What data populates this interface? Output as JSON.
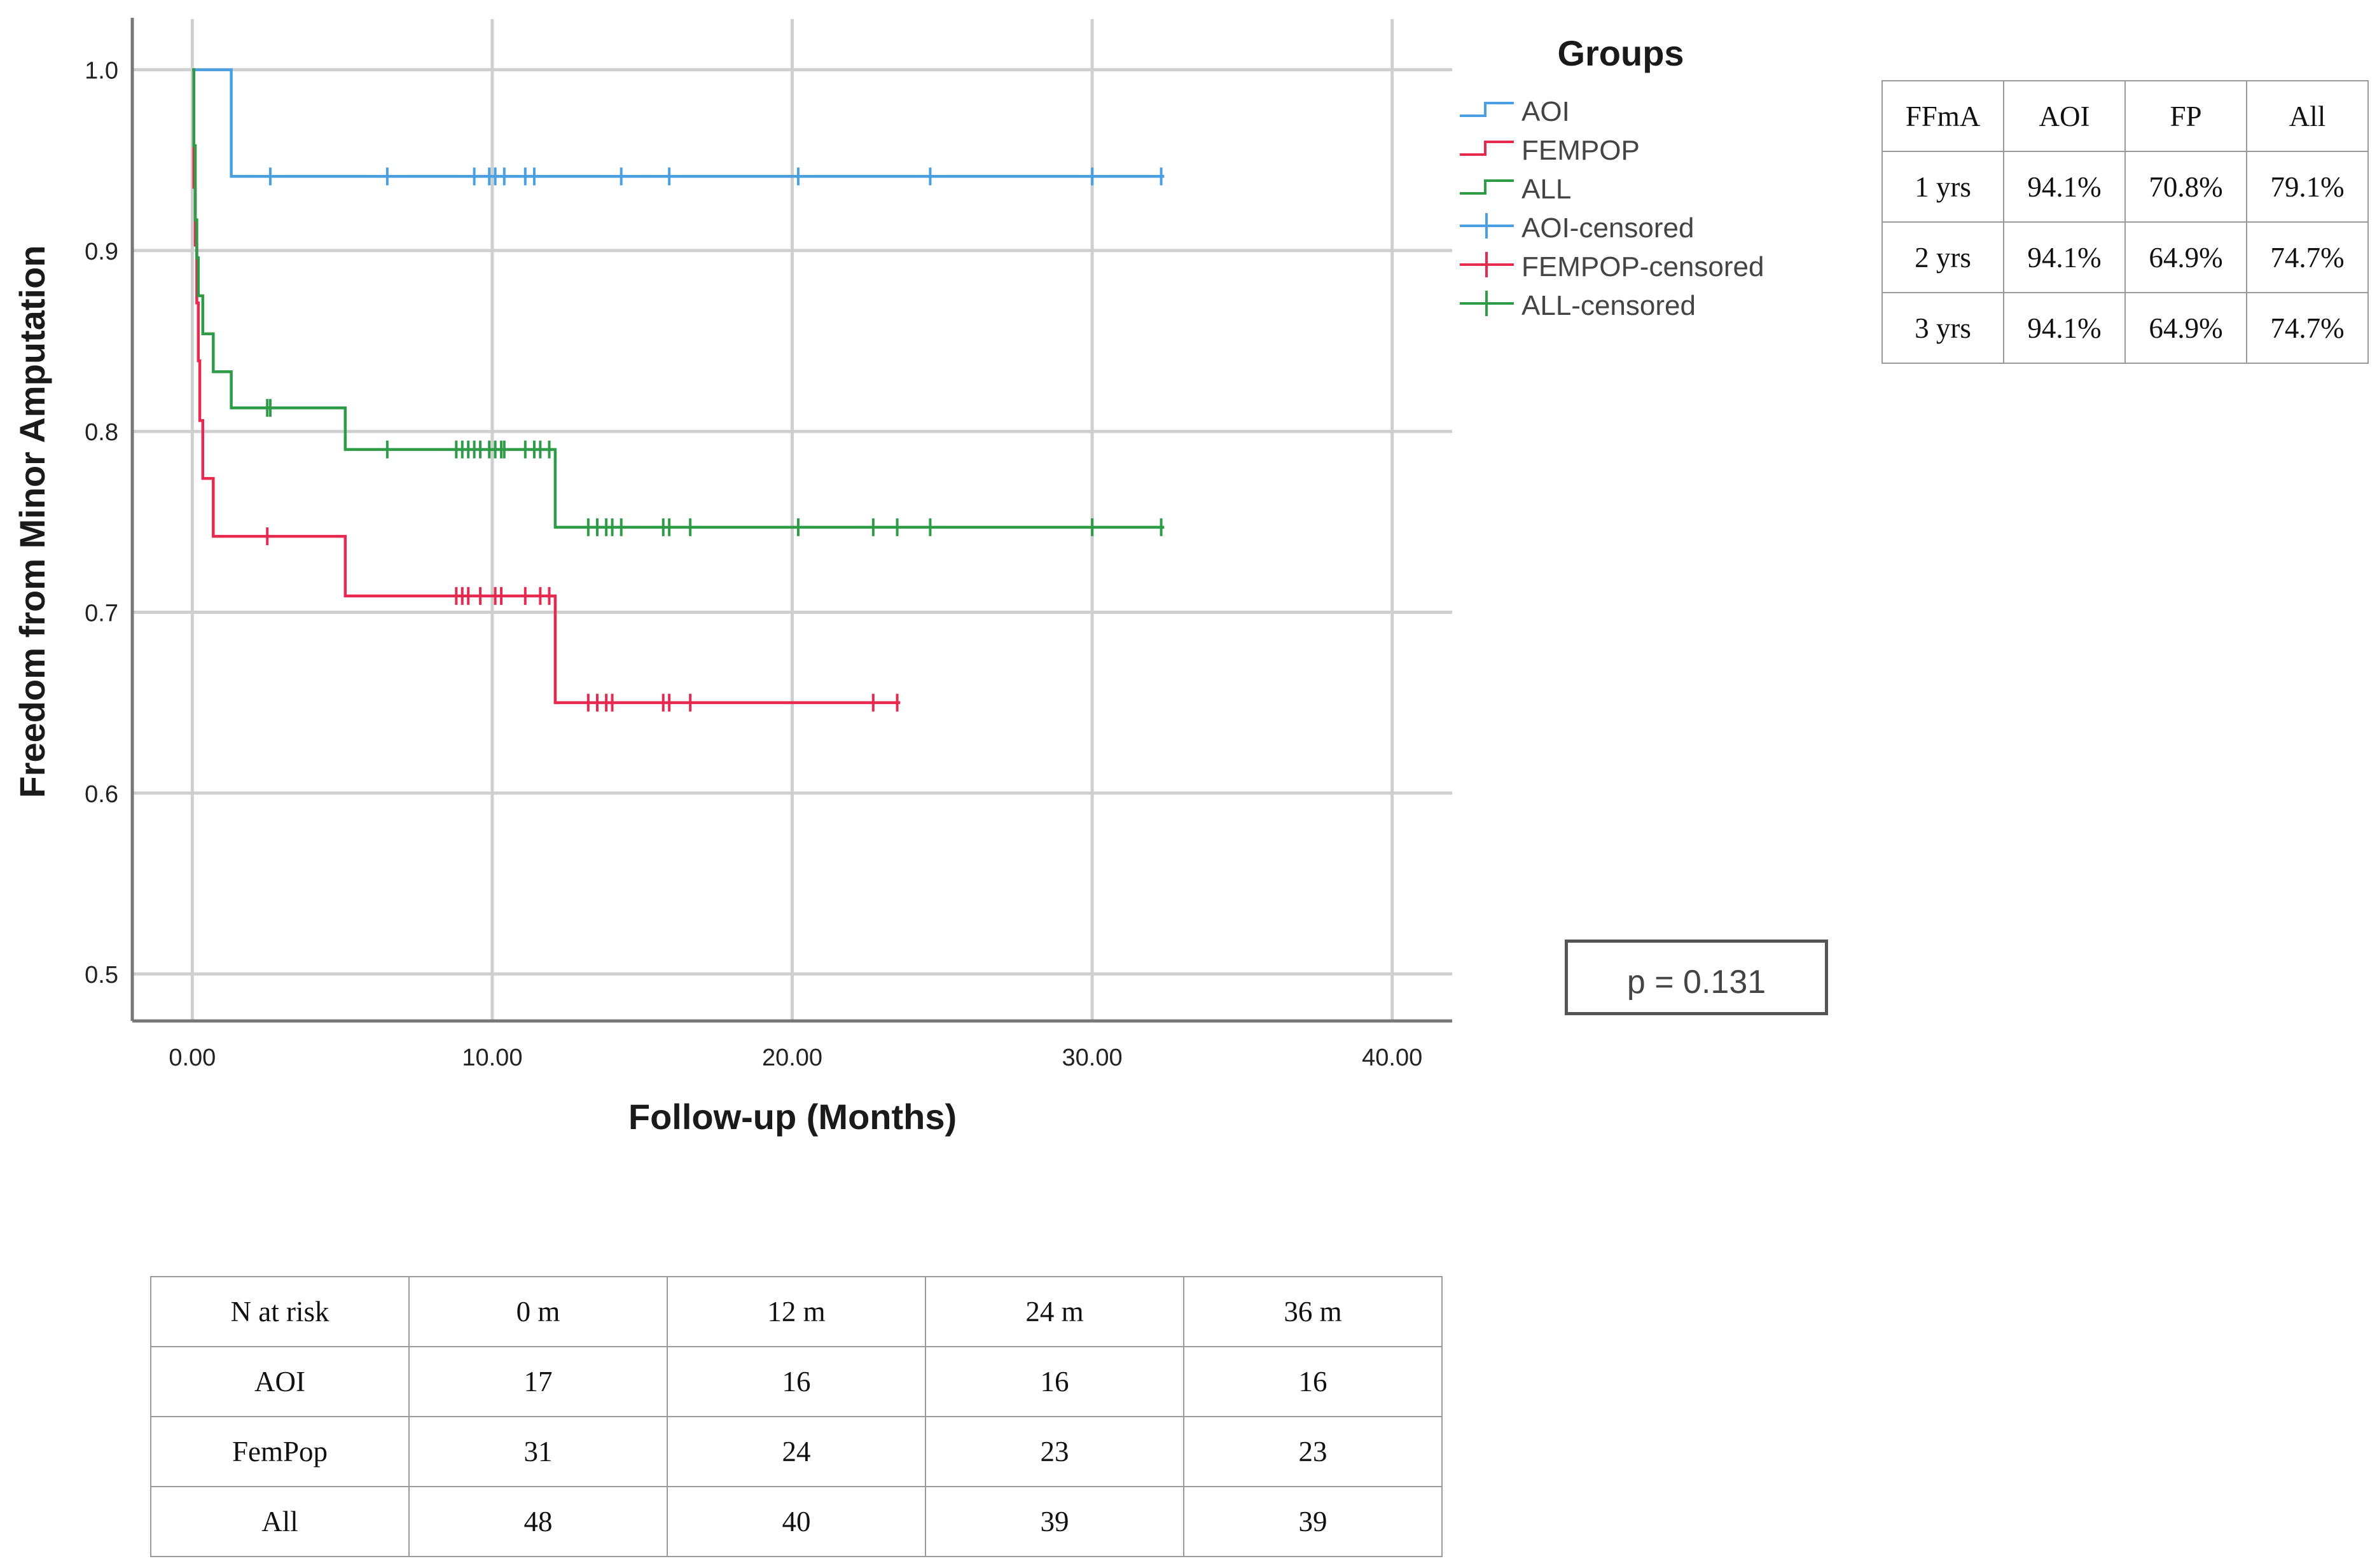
{
  "chart_data": {
    "type": "line",
    "subtype": "kaplan-meier-step",
    "xlabel": "Follow-up (Months)",
    "ylabel": "Freedom from Minor Amputation",
    "xlim": [
      -2,
      42
    ],
    "ylim": [
      0.474,
      1.028
    ],
    "x_ticks": [
      0,
      10,
      20,
      30,
      40
    ],
    "x_tick_labels": [
      "0.00",
      "10.00",
      "20.00",
      "30.00",
      "40.00"
    ],
    "y_ticks": [
      0.5,
      0.6,
      0.7,
      0.8,
      0.9,
      1.0
    ],
    "y_tick_labels": [
      "0.5",
      "0.6",
      "0.7",
      "0.8",
      "0.9",
      "1.0"
    ],
    "grid": true,
    "legend_title": "Groups",
    "legend_placement": "right",
    "legend": [
      "AOI",
      "FEMPOP",
      "ALL",
      "AOI-censored",
      "FEMPOP-censored",
      "ALL-censored"
    ],
    "series": [
      {
        "name": "AOI",
        "color": "#4a9fe3",
        "steps": [
          [
            0,
            1.0
          ],
          [
            1.3,
            0.941
          ],
          [
            32.4,
            0.941
          ]
        ],
        "censored": [
          2.6,
          6.5,
          9.4,
          9.9,
          10.1,
          10.4,
          11.1,
          11.4,
          14.3,
          15.9,
          20.2,
          24.6,
          30.0,
          32.3
        ]
      },
      {
        "name": "FEMPOP",
        "color": "#e8294f",
        "steps": [
          [
            0,
            1.0
          ],
          [
            0.05,
            0.935
          ],
          [
            0.1,
            0.903
          ],
          [
            0.15,
            0.871
          ],
          [
            0.2,
            0.839
          ],
          [
            0.25,
            0.806
          ],
          [
            0.35,
            0.774
          ],
          [
            0.7,
            0.742
          ],
          [
            5.1,
            0.709
          ],
          [
            12.1,
            0.65
          ],
          [
            23.6,
            0.65
          ]
        ],
        "censored": [
          2.5,
          8.8,
          9.0,
          9.2,
          9.6,
          10.1,
          10.3,
          11.1,
          11.6,
          11.9,
          13.2,
          13.5,
          13.8,
          14.0,
          15.7,
          15.9,
          16.6,
          22.7,
          23.5
        ]
      },
      {
        "name": "ALL",
        "color": "#2e9b46",
        "steps": [
          [
            0,
            1.0
          ],
          [
            0.05,
            0.958
          ],
          [
            0.1,
            0.917
          ],
          [
            0.15,
            0.896
          ],
          [
            0.2,
            0.875
          ],
          [
            0.35,
            0.854
          ],
          [
            0.7,
            0.833
          ],
          [
            1.3,
            0.813
          ],
          [
            5.1,
            0.79
          ],
          [
            12.1,
            0.747
          ],
          [
            32.4,
            0.747
          ]
        ],
        "censored": [
          2.5,
          2.6,
          6.5,
          8.8,
          9.0,
          9.2,
          9.4,
          9.6,
          9.9,
          10.1,
          10.3,
          10.4,
          11.1,
          11.4,
          11.6,
          11.9,
          13.2,
          13.5,
          13.8,
          14.0,
          14.3,
          15.7,
          15.9,
          16.6,
          20.2,
          22.7,
          23.5,
          24.6,
          30.0,
          32.3
        ]
      }
    ]
  },
  "p_value_text": "p = 0.131",
  "survival_table": {
    "header": [
      "FFmA",
      "AOI",
      "FP",
      "All"
    ],
    "rows": [
      [
        "1 yrs",
        "94.1%",
        "70.8%",
        "79.1%"
      ],
      [
        "2 yrs",
        "94.1%",
        "64.9%",
        "74.7%"
      ],
      [
        "3 yrs",
        "94.1%",
        "64.9%",
        "74.7%"
      ]
    ]
  },
  "risk_table": {
    "header": [
      "N at risk",
      "0 m",
      "12 m",
      "24 m",
      "36 m"
    ],
    "rows": [
      [
        "AOI",
        "17",
        "16",
        "16",
        "16"
      ],
      [
        "FemPop",
        "31",
        "24",
        "23",
        "23"
      ],
      [
        "All",
        "48",
        "40",
        "39",
        "39"
      ]
    ]
  }
}
